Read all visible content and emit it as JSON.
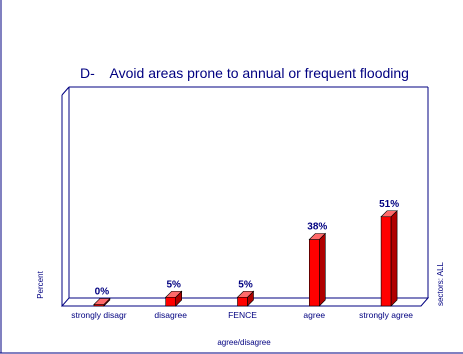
{
  "chart_data": {
    "type": "bar",
    "title": "D-    Avoid areas prone to annual or frequent flooding",
    "categories": [
      "strongly disagr",
      "disagree",
      "FENCE",
      "agree",
      "strongly agree"
    ],
    "values": [
      0,
      5,
      5,
      38,
      51
    ],
    "data_labels": [
      "0%",
      "5%",
      "5%",
      "38%",
      "51%"
    ],
    "xlabel": "agree/disagree",
    "ylabel": "Percent",
    "right_label": "sectors: ALL",
    "ylim": [
      0,
      60
    ],
    "grid": false,
    "legend": "none",
    "bar_color": "#ff0000",
    "label_color": "#000080",
    "axis_color": "#000080",
    "title_color": "#000080"
  }
}
